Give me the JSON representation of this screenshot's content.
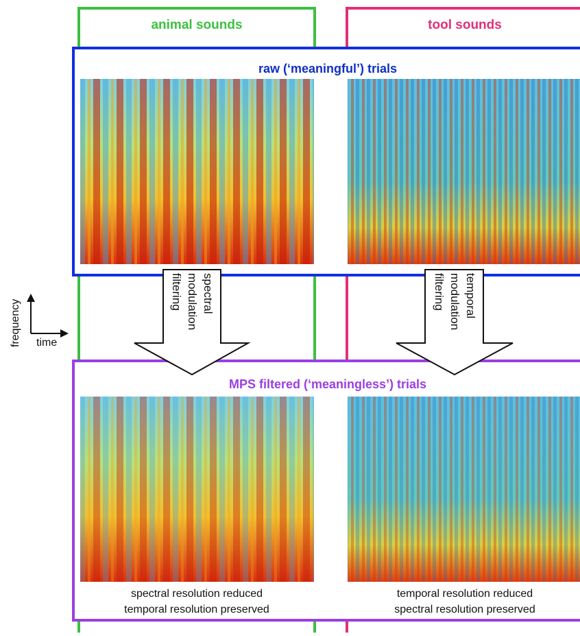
{
  "columns": [
    {
      "label": "animal sounds"
    },
    {
      "label": "tool sounds"
    }
  ],
  "rows": [
    {
      "label": "raw (‘meaningful’) trials"
    },
    {
      "label": "MPS filtered (‘meaningless’) trials"
    }
  ],
  "arrows": [
    [
      "spectral",
      "modulation",
      "filtering"
    ],
    [
      "temporal",
      "modulation",
      "filtering"
    ]
  ],
  "axes": {
    "y": "frequency",
    "x": "time"
  },
  "captions": [
    [
      "spectral resolution reduced",
      "temporal resolution preserved"
    ],
    [
      "temporal resolution reduced",
      "spectral resolution preserved"
    ]
  ]
}
